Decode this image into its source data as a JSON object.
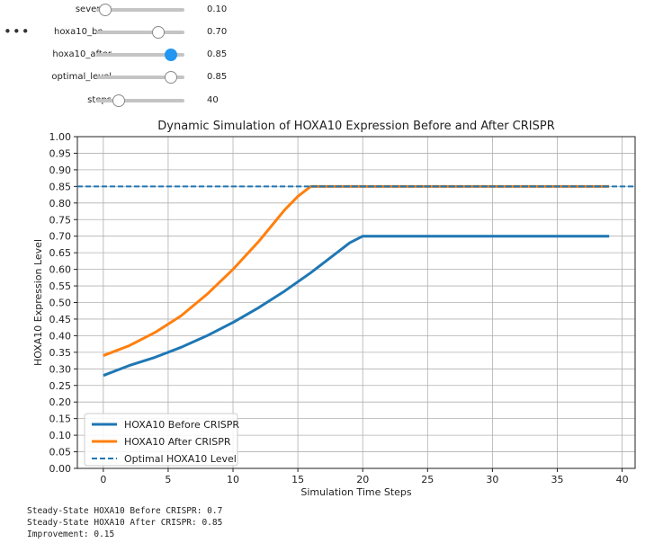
{
  "controls": {
    "sliders": [
      {
        "label": "severity",
        "value_text": "0.10",
        "fraction": 0.1,
        "active": false
      },
      {
        "label": "hoxa10_be...",
        "value_text": "0.70",
        "fraction": 0.7,
        "active": false
      },
      {
        "label": "hoxa10_after",
        "value_text": "0.85",
        "fraction": 0.85,
        "active": true
      },
      {
        "label": "optimal_level",
        "value_text": "0.85",
        "fraction": 0.85,
        "active": false
      },
      {
        "label": "steps",
        "value_text": "40",
        "fraction": 0.26,
        "active": false
      }
    ]
  },
  "chart_data": {
    "type": "line",
    "title": "Dynamic Simulation of HOXA10 Expression Before and After CRISPR",
    "xlabel": "Simulation Time Steps",
    "ylabel": "HOXA10 Expression Level",
    "xlim": [
      -2,
      41
    ],
    "ylim": [
      0.0,
      1.0
    ],
    "xticks": [
      0,
      5,
      10,
      15,
      20,
      25,
      30,
      35,
      40
    ],
    "yticks": [
      0.0,
      0.05,
      0.1,
      0.15,
      0.2,
      0.25,
      0.3,
      0.35,
      0.4,
      0.45,
      0.5,
      0.55,
      0.6,
      0.65,
      0.7,
      0.75,
      0.8,
      0.85,
      0.9,
      0.95,
      1.0
    ],
    "grid": true,
    "legend_position": "lower-left",
    "series": [
      {
        "name": "HOXA10 Before CRISPR",
        "color": "#1f77b4",
        "style": "solid",
        "x": [
          0,
          2,
          4,
          6,
          8,
          10,
          12,
          14,
          16,
          18,
          19,
          20,
          39
        ],
        "y": [
          0.28,
          0.31,
          0.335,
          0.365,
          0.4,
          0.44,
          0.485,
          0.535,
          0.59,
          0.65,
          0.68,
          0.7,
          0.7
        ]
      },
      {
        "name": "HOXA10 After CRISPR",
        "color": "#ff7f0e",
        "style": "solid",
        "x": [
          0,
          2,
          4,
          6,
          8,
          10,
          12,
          14,
          15,
          16,
          39
        ],
        "y": [
          0.34,
          0.37,
          0.41,
          0.46,
          0.525,
          0.6,
          0.685,
          0.78,
          0.82,
          0.85,
          0.85
        ]
      },
      {
        "name": "Optimal HOXA10 Level",
        "color": "#1f77b4",
        "style": "dashed",
        "hline": 0.85
      }
    ]
  },
  "output": {
    "lines": [
      "Steady-State HOXA10 Before CRISPR: 0.7",
      "Steady-State HOXA10 After CRISPR: 0.85",
      "Improvement: 0.15"
    ]
  }
}
